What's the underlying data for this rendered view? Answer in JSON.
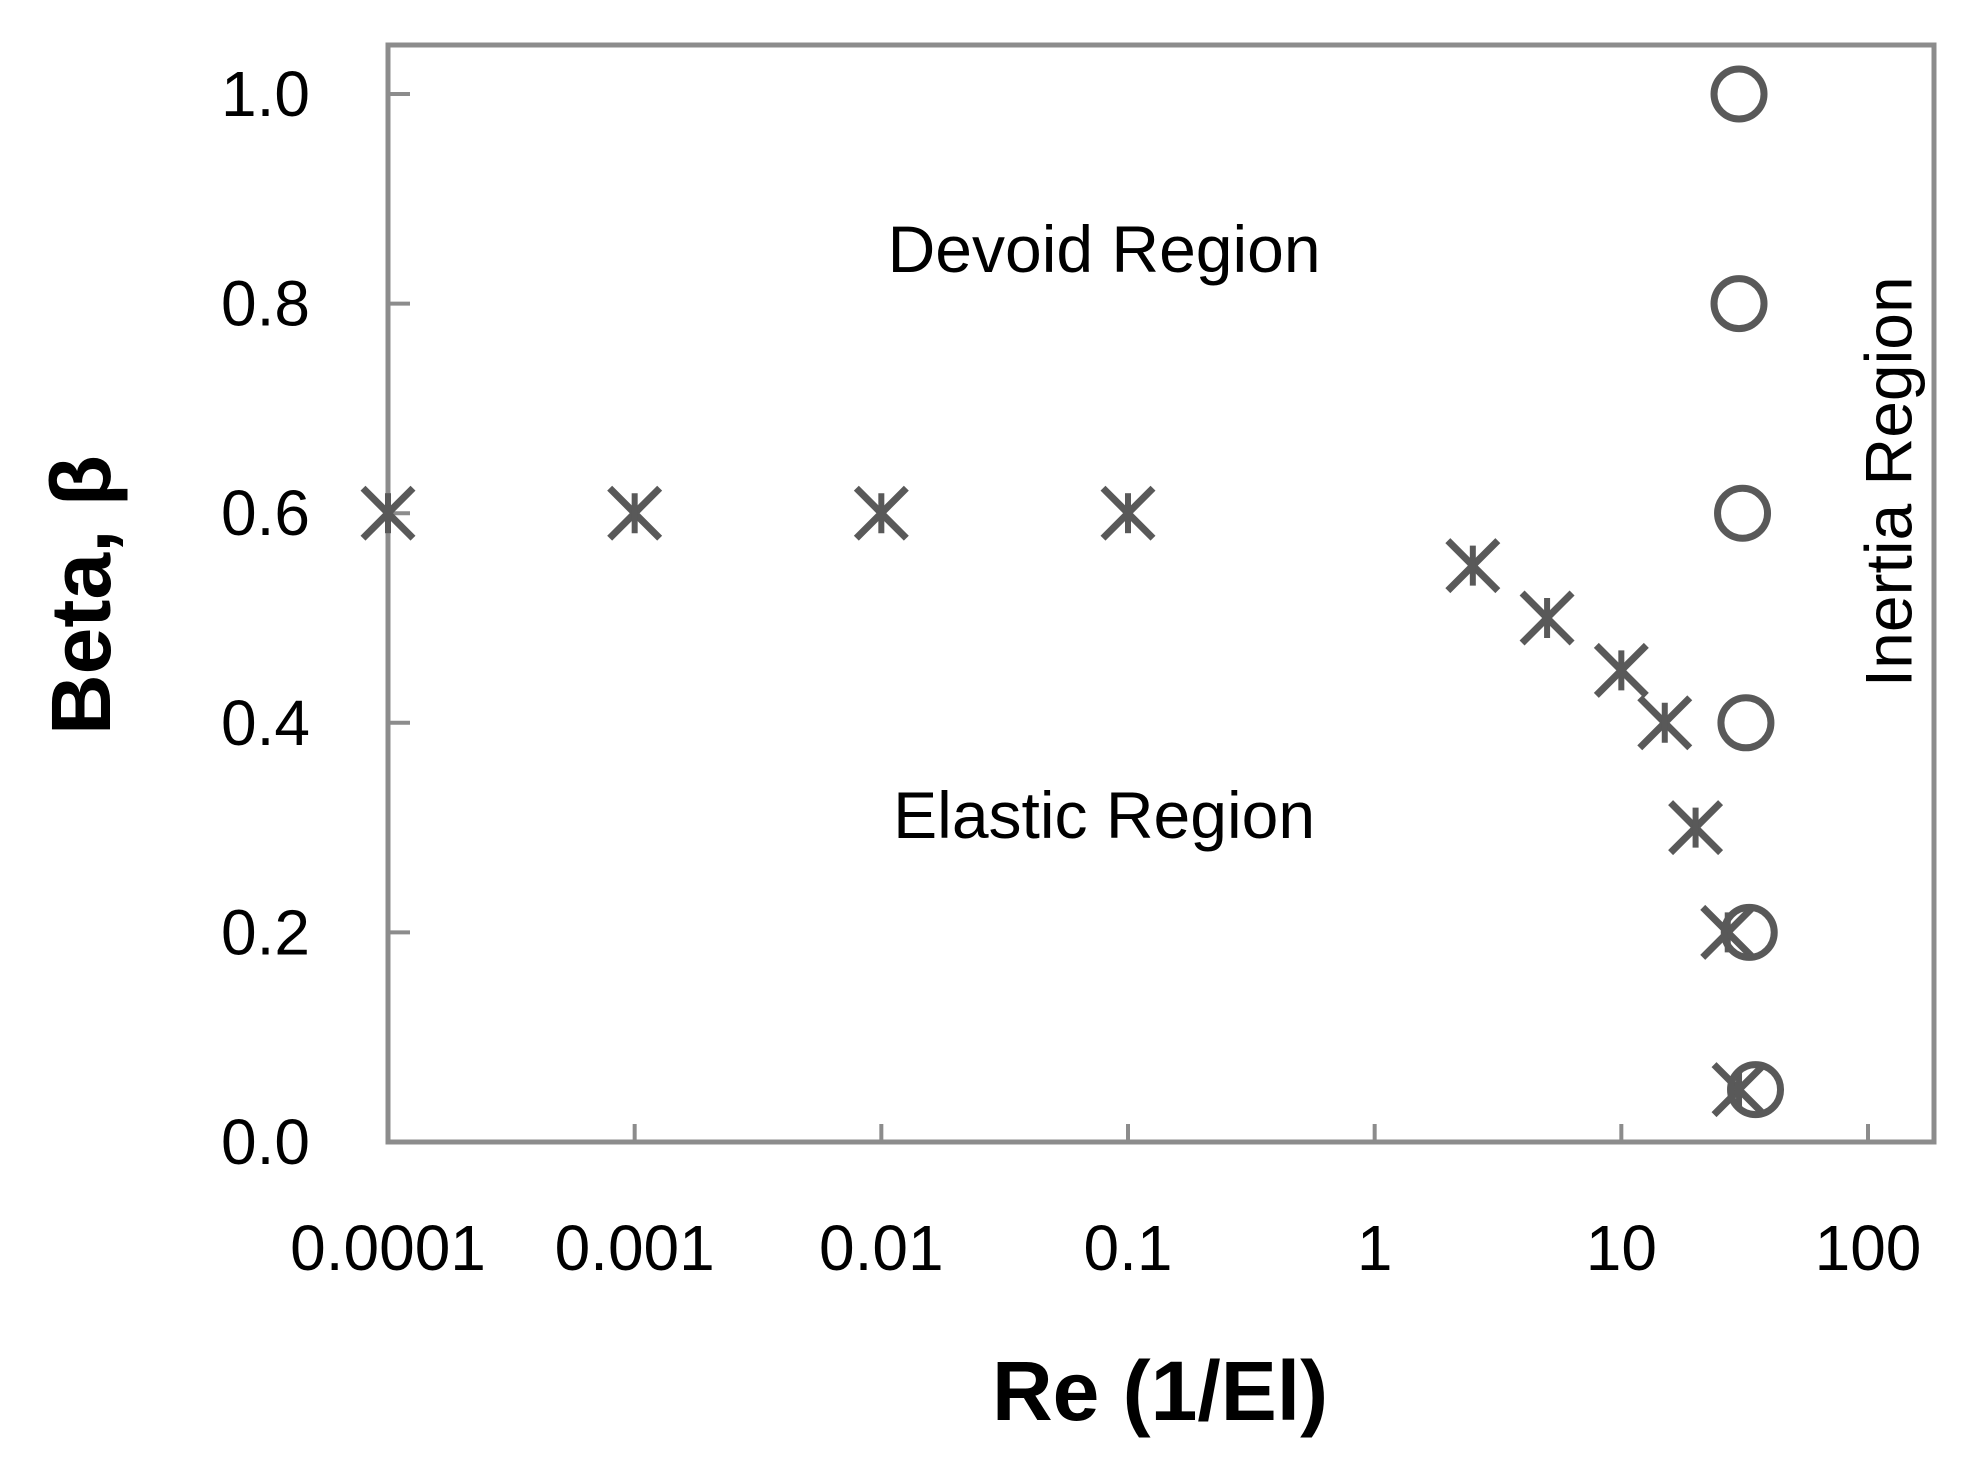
{
  "chart_data": {
    "type": "scatter",
    "xlabel": "Re (1/El)",
    "ylabel": "Beta, β",
    "xscale": "log",
    "xlim": [
      0.0001,
      100
    ],
    "ylim": [
      0.0,
      1.0
    ],
    "x_ticks": [
      {
        "value": 0.0001,
        "label": "0.0001"
      },
      {
        "value": 0.001,
        "label": "0.001"
      },
      {
        "value": 0.01,
        "label": "0.01"
      },
      {
        "value": 0.1,
        "label": "0.1"
      },
      {
        "value": 1,
        "label": "1"
      },
      {
        "value": 10,
        "label": "10"
      },
      {
        "value": 100,
        "label": "100"
      }
    ],
    "y_ticks": [
      {
        "value": 0.0,
        "label": "0.0"
      },
      {
        "value": 0.2,
        "label": "0.2"
      },
      {
        "value": 0.4,
        "label": "0.4"
      },
      {
        "value": 0.6,
        "label": "0.6"
      },
      {
        "value": 0.8,
        "label": "0.8"
      },
      {
        "value": 1.0,
        "label": "1.0"
      }
    ],
    "grid": false,
    "legend": "none",
    "color": "#595959",
    "series": [
      {
        "marker": "x-cross",
        "x": [
          0.0001,
          0.001,
          0.01,
          0.1,
          2.5,
          5,
          10,
          15,
          20,
          27,
          30
        ],
        "y": [
          0.6,
          0.6,
          0.6,
          0.6,
          0.55,
          0.5,
          0.45,
          0.4,
          0.3,
          0.2,
          0.05
        ]
      },
      {
        "marker": "circle",
        "x": [
          30,
          30,
          31,
          32,
          33,
          35
        ],
        "y": [
          1.0,
          0.8,
          0.6,
          0.4,
          0.2,
          0.05
        ]
      }
    ],
    "annotations": [
      {
        "text": "Devoid Region",
        "x": 0.08,
        "y": 0.83,
        "rotation": 0
      },
      {
        "text": "Elastic Region",
        "x": 0.08,
        "y": 0.29,
        "rotation": 0
      },
      {
        "text": "Inertia Region",
        "x": 150,
        "y": 0.63,
        "rotation": -90
      }
    ]
  }
}
